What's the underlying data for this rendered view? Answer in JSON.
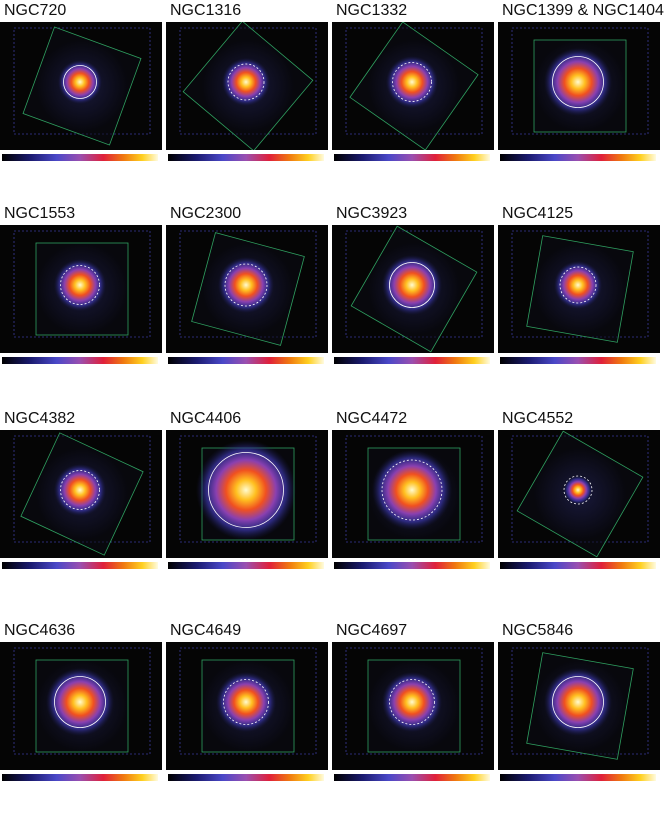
{
  "panels": [
    {
      "label": "NGC720"
    },
    {
      "label": "NGC1316"
    },
    {
      "label": "NGC1332"
    },
    {
      "label": "NGC1399 & NGC1404"
    },
    {
      "label": "NGC1553"
    },
    {
      "label": "NGC2300"
    },
    {
      "label": "NGC3923"
    },
    {
      "label": "NGC4125"
    },
    {
      "label": "NGC4382"
    },
    {
      "label": "NGC4406"
    },
    {
      "label": "NGC4472"
    },
    {
      "label": "NGC4552"
    },
    {
      "label": "NGC4636"
    },
    {
      "label": "NGC4649"
    },
    {
      "label": "NGC4697"
    },
    {
      "label": "NGC5846"
    }
  ]
}
